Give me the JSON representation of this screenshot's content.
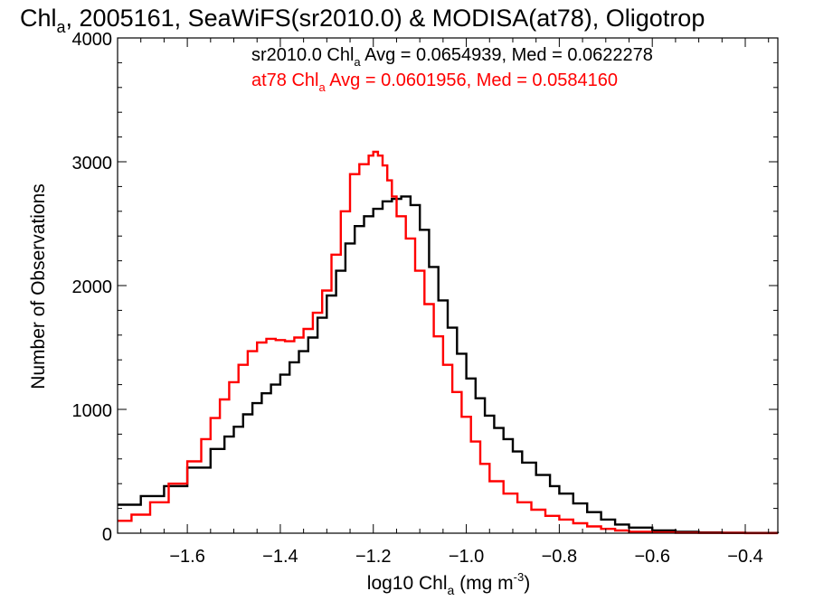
{
  "chart_data": {
    "type": "line",
    "title": {
      "prefix": "Chl",
      "sub": "a",
      "rest": ", 2005161, SeaWiFS(sr2010.0) & MODISA(at78), Oligotrop"
    },
    "xlabel": {
      "prefix": "log10 Chl",
      "sub": "a",
      "units": " (mg m",
      "sup": "-3",
      "close": ")"
    },
    "ylabel": "Number of Observations",
    "xlim": [
      -1.75,
      -0.33
    ],
    "ylim": [
      0,
      4000
    ],
    "x_ticks": [
      -1.6,
      -1.4,
      -1.2,
      -1.0,
      -0.8,
      -0.6,
      -0.4
    ],
    "x_tick_labels": [
      "−1.6",
      "−1.4",
      "−1.2",
      "−1.0",
      "−0.8",
      "−0.6",
      "−0.4"
    ],
    "y_ticks": [
      0,
      1000,
      2000,
      3000,
      4000
    ],
    "y_tick_labels": [
      "0",
      "1000",
      "2000",
      "3000",
      "4000"
    ],
    "grid": false,
    "annotations": [
      {
        "prefix": "sr2010.0 Chl",
        "sub": "a",
        "rest": " Avg = 0.0654939, Med = 0.0622278",
        "color": "#000000"
      },
      {
        "prefix": "at78 Chl",
        "sub": "a",
        "rest": " Avg = 0.0601956, Med = 0.0584160",
        "color": "#ff0000"
      }
    ],
    "series": [
      {
        "color": "#000000",
        "x": [
          -1.75,
          -1.7,
          -1.65,
          -1.6,
          -1.55,
          -1.52,
          -1.5,
          -1.48,
          -1.46,
          -1.44,
          -1.42,
          -1.4,
          -1.38,
          -1.36,
          -1.34,
          -1.32,
          -1.3,
          -1.28,
          -1.26,
          -1.24,
          -1.22,
          -1.2,
          -1.18,
          -1.16,
          -1.14,
          -1.12,
          -1.1,
          -1.08,
          -1.06,
          -1.04,
          -1.02,
          -1.0,
          -0.98,
          -0.96,
          -0.94,
          -0.92,
          -0.9,
          -0.88,
          -0.85,
          -0.82,
          -0.8,
          -0.77,
          -0.74,
          -0.71,
          -0.68,
          -0.65,
          -0.6,
          -0.55,
          -0.5,
          -0.45,
          -0.4,
          -0.33
        ],
        "y": [
          230,
          300,
          380,
          530,
          680,
          780,
          860,
          960,
          1050,
          1130,
          1200,
          1280,
          1380,
          1470,
          1580,
          1740,
          1920,
          2120,
          2340,
          2480,
          2560,
          2620,
          2680,
          2700,
          2720,
          2650,
          2450,
          2150,
          1880,
          1660,
          1450,
          1250,
          1090,
          950,
          850,
          760,
          660,
          570,
          470,
          380,
          320,
          240,
          170,
          110,
          70,
          45,
          22,
          12,
          6,
          4,
          2,
          1
        ]
      },
      {
        "color": "#ff0000",
        "x": [
          -1.75,
          -1.72,
          -1.68,
          -1.64,
          -1.6,
          -1.57,
          -1.55,
          -1.53,
          -1.51,
          -1.49,
          -1.47,
          -1.45,
          -1.43,
          -1.41,
          -1.39,
          -1.37,
          -1.35,
          -1.33,
          -1.31,
          -1.29,
          -1.27,
          -1.25,
          -1.23,
          -1.21,
          -1.2,
          -1.19,
          -1.18,
          -1.17,
          -1.16,
          -1.15,
          -1.13,
          -1.11,
          -1.09,
          -1.07,
          -1.05,
          -1.03,
          -1.01,
          -0.99,
          -0.97,
          -0.95,
          -0.92,
          -0.89,
          -0.86,
          -0.83,
          -0.8,
          -0.77,
          -0.74,
          -0.71,
          -0.68,
          -0.65,
          -0.6,
          -0.55,
          -0.5,
          -0.4,
          -0.33
        ],
        "y": [
          100,
          150,
          250,
          400,
          580,
          760,
          930,
          1080,
          1220,
          1360,
          1470,
          1540,
          1570,
          1560,
          1550,
          1580,
          1650,
          1780,
          1960,
          2250,
          2600,
          2900,
          2980,
          3050,
          3080,
          3050,
          2970,
          2850,
          2720,
          2560,
          2380,
          2120,
          1850,
          1590,
          1360,
          1140,
          940,
          740,
          560,
          420,
          320,
          250,
          190,
          140,
          110,
          80,
          55,
          35,
          22,
          12,
          6,
          3,
          2,
          1,
          1
        ]
      }
    ]
  }
}
